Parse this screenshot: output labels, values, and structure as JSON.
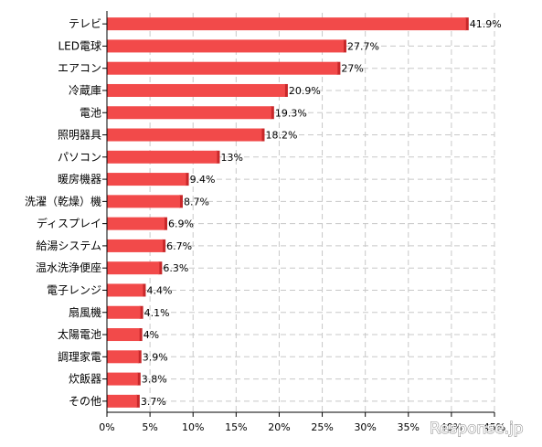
{
  "chart_data": {
    "type": "bar",
    "orientation": "horizontal",
    "categories": [
      "テレビ",
      "LED電球",
      "エアコン",
      "冷蔵庫",
      "電池",
      "照明器具",
      "パソコン",
      "暖房機器",
      "洗濯（乾燥）機",
      "ディスプレイ",
      "給湯システム",
      "温水洗浄便座",
      "電子レンジ",
      "扇風機",
      "太陽電池",
      "調理家電",
      "炊飯器",
      "その他"
    ],
    "values": [
      41.9,
      27.7,
      27,
      20.9,
      19.3,
      18.2,
      13,
      9.4,
      8.7,
      6.9,
      6.7,
      6.3,
      4.4,
      4.1,
      4,
      3.9,
      3.8,
      3.7
    ],
    "value_labels": [
      "41.9%",
      "27.7%",
      "27%",
      "20.9%",
      "19.3%",
      "18.2%",
      "13%",
      "9.4%",
      "8.7%",
      "6.9%",
      "6.7%",
      "6.3%",
      "4.4%",
      "4.1%",
      "4%",
      "3.9%",
      "3.8%",
      "3.7%"
    ],
    "x_ticks": [
      "0%",
      "5%",
      "10%",
      "15%",
      "20%",
      "25%",
      "30%",
      "35%",
      "40%",
      "45%"
    ],
    "xlim": [
      0,
      45
    ],
    "grid": true,
    "bar_color": "#f24a4a",
    "bar_edge_color": "#c8282a"
  },
  "watermark": "Response.jp"
}
